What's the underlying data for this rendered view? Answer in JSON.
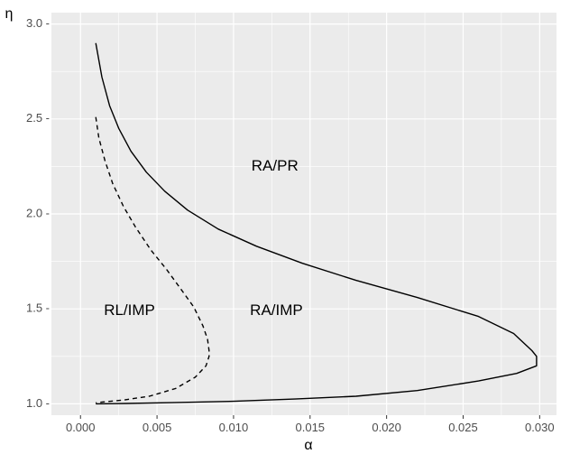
{
  "chart_data": {
    "type": "line",
    "title": "",
    "xlabel": "α",
    "ylabel": "η",
    "xlim": [
      -0.0019,
      0.0311
    ],
    "ylim": [
      0.94,
      3.06
    ],
    "x_ticks": [
      0.0,
      0.005,
      0.01,
      0.015,
      0.02,
      0.025,
      0.03
    ],
    "x_tick_labels": [
      "0.000",
      "0.005",
      "0.010",
      "0.015",
      "0.020",
      "0.025",
      "0.030"
    ],
    "y_ticks": [
      1.0,
      1.5,
      2.0,
      2.5,
      3.0
    ],
    "y_tick_labels": [
      "1.0 -",
      "1.5 -",
      "2.0 -",
      "2.5 -",
      "3.0 -"
    ],
    "grid": true,
    "background": "#ebebeb",
    "series": [
      {
        "style": "solid",
        "color": "#000000",
        "x": [
          0.001,
          0.0014,
          0.0019,
          0.0025,
          0.0033,
          0.0043,
          0.0055,
          0.007,
          0.009,
          0.0115,
          0.0145,
          0.018,
          0.022,
          0.026,
          0.0283,
          0.0295,
          0.0298,
          0.0298,
          0.0285,
          0.026,
          0.022,
          0.018,
          0.014,
          0.01,
          0.006,
          0.003,
          0.001
        ],
        "y": [
          2.9,
          2.72,
          2.57,
          2.45,
          2.33,
          2.22,
          2.12,
          2.02,
          1.92,
          1.83,
          1.74,
          1.65,
          1.56,
          1.46,
          1.37,
          1.28,
          1.25,
          1.2,
          1.16,
          1.12,
          1.07,
          1.04,
          1.025,
          1.013,
          1.006,
          1.002,
          1.0
        ]
      },
      {
        "style": "dashed",
        "color": "#000000",
        "x": [
          0.001,
          0.0012,
          0.0016,
          0.0021,
          0.0028,
          0.0036,
          0.0046,
          0.0056,
          0.0066,
          0.0074,
          0.008,
          0.0083,
          0.0084,
          0.0084,
          0.0082,
          0.0075,
          0.0062,
          0.0045,
          0.0028,
          0.0015,
          0.001
        ],
        "y": [
          2.51,
          2.4,
          2.28,
          2.16,
          2.04,
          1.93,
          1.81,
          1.71,
          1.6,
          1.51,
          1.41,
          1.34,
          1.28,
          1.25,
          1.2,
          1.14,
          1.08,
          1.04,
          1.02,
          1.01,
          1.005
        ]
      }
    ],
    "annotations": [
      {
        "text": "RA/PR",
        "x": 0.0127,
        "y": 2.25
      },
      {
        "text": "RL/IMP",
        "x": 0.0032,
        "y": 1.49
      },
      {
        "text": "RA/IMP",
        "x": 0.0128,
        "y": 1.49
      }
    ]
  }
}
